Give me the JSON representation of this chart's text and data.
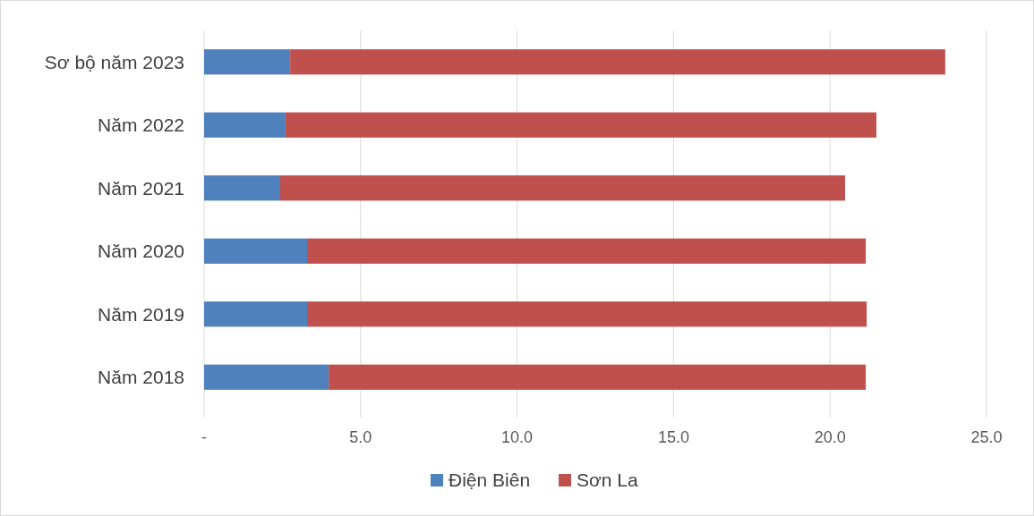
{
  "chart_data": {
    "type": "bar",
    "orientation": "horizontal",
    "stacked": true,
    "categories": [
      "Sơ bộ năm 2023",
      "Năm 2022",
      "Năm 2021",
      "Năm 2020",
      "Năm 2019",
      "Năm 2018"
    ],
    "series": [
      {
        "name": "Điện Biên",
        "color": "#4f81bd",
        "values": [
          2.75,
          2.6,
          2.43,
          3.29,
          3.29,
          3.98
        ]
      },
      {
        "name": "Sơn La",
        "color": "#c0504d",
        "values": [
          20.93,
          18.88,
          18.05,
          17.85,
          17.88,
          17.16
        ]
      }
    ],
    "xlim": [
      0,
      25
    ],
    "xticks": [
      {
        "value": 0,
        "label": "-"
      },
      {
        "value": 5,
        "label": "5.0"
      },
      {
        "value": 10,
        "label": "10.0"
      },
      {
        "value": 15,
        "label": "15.0"
      },
      {
        "value": 20,
        "label": "20.0"
      },
      {
        "value": 25,
        "label": "25.0"
      }
    ],
    "grid": "x",
    "legend": "bottom"
  }
}
